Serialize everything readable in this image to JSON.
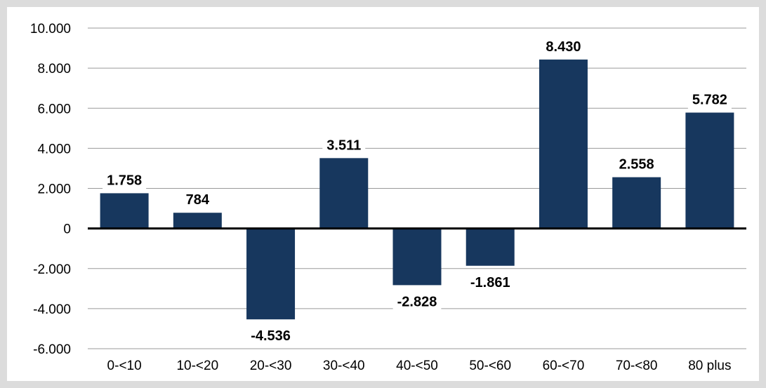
{
  "chart_data": {
    "type": "bar",
    "categories": [
      "0-<10",
      "10-<20",
      "20-<30",
      "30-<40",
      "40-<50",
      "50-<60",
      "60-<70",
      "70-<80",
      "80 plus"
    ],
    "series": [
      {
        "values": [
          1758,
          784,
          -4536,
          3511,
          -2828,
          -1861,
          8430,
          2558,
          5782
        ]
      }
    ],
    "data_labels": [
      "1.758",
      "784",
      "-4.536",
      "3.511",
      "-2.828",
      "-1.861",
      "8.430",
      "2.558",
      "5.782"
    ],
    "ylim": [
      -6000,
      10000
    ],
    "yticks": [
      -6000,
      -4000,
      -2000,
      0,
      2000,
      4000,
      6000,
      8000,
      10000
    ],
    "ytick_labels": [
      "-6.000",
      "-4.000",
      "-2.000",
      "0",
      "2.000",
      "4.000",
      "6.000",
      "8.000",
      "10.000"
    ],
    "grid": true,
    "colors": {
      "background": "#dcdcdc",
      "plot_area": "#ffffff",
      "bar": "#17375e",
      "gridline": "#9a9a9a",
      "zero_line": "#000000"
    }
  }
}
